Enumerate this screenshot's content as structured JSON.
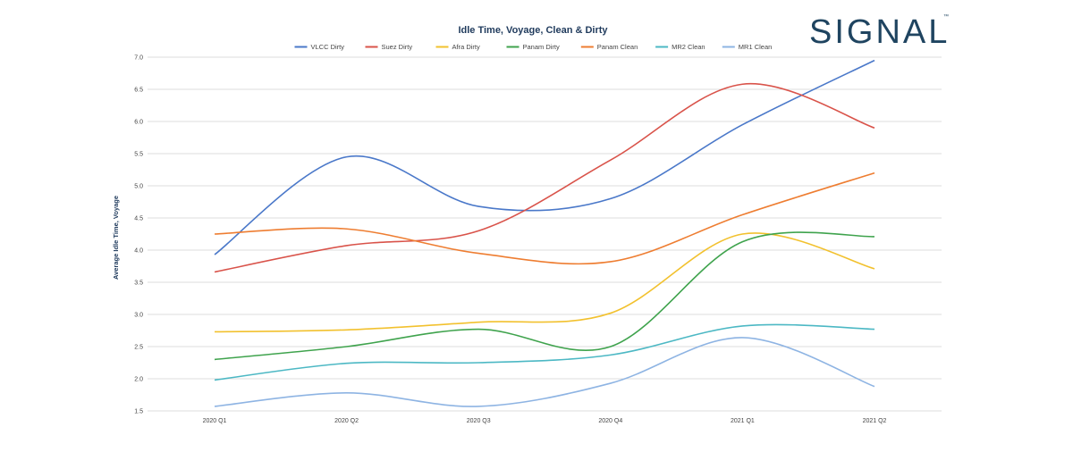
{
  "brand": {
    "name": "SIGNAL",
    "tm": "™",
    "color": "#1f4460"
  },
  "chart_data": {
    "type": "line",
    "title": "Idle Time, Voyage, Clean & Dirty",
    "xlabel": "",
    "ylabel": "Average Idle Time, Voyage",
    "categories": [
      "2020 Q1",
      "2020 Q2",
      "2020 Q3",
      "2020 Q4",
      "2021 Q1",
      "2021 Q2"
    ],
    "ylim": [
      1.5,
      7.0
    ],
    "yticks": [
      "1.5",
      "2.0",
      "2.5",
      "3.0",
      "3.5",
      "4.0",
      "4.5",
      "5.0",
      "5.5",
      "6.0",
      "6.5",
      "7.0"
    ],
    "grid": true,
    "legend_position": "top",
    "series": [
      {
        "name": "VLCC Dirty",
        "color": "#4a78c9",
        "values": [
          3.93,
          5.45,
          4.68,
          4.8,
          5.95,
          6.95
        ]
      },
      {
        "name": "Suez Dirty",
        "color": "#d9534a",
        "values": [
          3.66,
          4.07,
          4.3,
          5.4,
          6.58,
          5.9
        ]
      },
      {
        "name": "Afra Dirty",
        "color": "#f2c12e",
        "values": [
          2.73,
          2.76,
          2.88,
          3.02,
          4.25,
          3.71
        ]
      },
      {
        "name": "Panam Dirty",
        "color": "#3fa34d",
        "values": [
          2.3,
          2.5,
          2.77,
          2.5,
          4.13,
          4.21
        ]
      },
      {
        "name": "Panam Clean",
        "color": "#ee7d31",
        "values": [
          4.25,
          4.33,
          3.95,
          3.82,
          4.55,
          5.2
        ]
      },
      {
        "name": "MR2 Clean",
        "color": "#4cb8c4",
        "values": [
          1.98,
          2.24,
          2.25,
          2.37,
          2.82,
          2.77
        ]
      },
      {
        "name": "MR1 Clean",
        "color": "#8eb4e3",
        "values": [
          1.57,
          1.78,
          1.57,
          1.93,
          2.64,
          1.88
        ]
      }
    ]
  }
}
